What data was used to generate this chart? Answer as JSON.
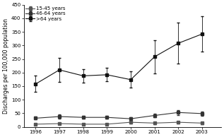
{
  "years": [
    1996,
    1997,
    1998,
    1999,
    2000,
    2001,
    2002,
    2003
  ],
  "series": {
    "15-45 years": {
      "values": [
        10,
        12,
        10,
        10,
        17,
        14,
        17,
        14
      ],
      "yerr_low": [
        3,
        3,
        3,
        3,
        5,
        4,
        4,
        4
      ],
      "yerr_high": [
        3,
        3,
        3,
        3,
        5,
        4,
        4,
        4
      ],
      "color": "#555555",
      "marker": "s",
      "linestyle": "-"
    },
    "46-64 years": {
      "values": [
        32,
        38,
        35,
        35,
        30,
        42,
        53,
        49
      ],
      "yerr_low": [
        5,
        7,
        5,
        5,
        5,
        7,
        9,
        8
      ],
      "yerr_high": [
        5,
        7,
        5,
        5,
        5,
        7,
        9,
        8
      ],
      "color": "#333333",
      "marker": "s",
      "linestyle": "-"
    },
    ">64 years": {
      "values": [
        158,
        210,
        188,
        192,
        174,
        258,
        308,
        342
      ],
      "yerr_low": [
        30,
        45,
        25,
        25,
        30,
        62,
        75,
        65
      ],
      "yerr_high": [
        30,
        45,
        25,
        25,
        30,
        62,
        75,
        65
      ],
      "color": "#111111",
      "marker": "s",
      "linestyle": "-"
    }
  },
  "ylim": [
    0,
    450
  ],
  "yticks": [
    0,
    50,
    100,
    150,
    200,
    250,
    300,
    350,
    400,
    450
  ],
  "ytick_labels": [
    "0",
    "50",
    "100",
    "150",
    "200",
    "250",
    "300",
    "350",
    "400",
    "450"
  ],
  "ylabel": "Discharges per 100,000 population",
  "legend_labels": [
    "15-45 years",
    "46-64 years",
    ">64 years"
  ],
  "background_color": "#ffffff",
  "font_size": 5.5,
  "tick_font_size": 5.0
}
